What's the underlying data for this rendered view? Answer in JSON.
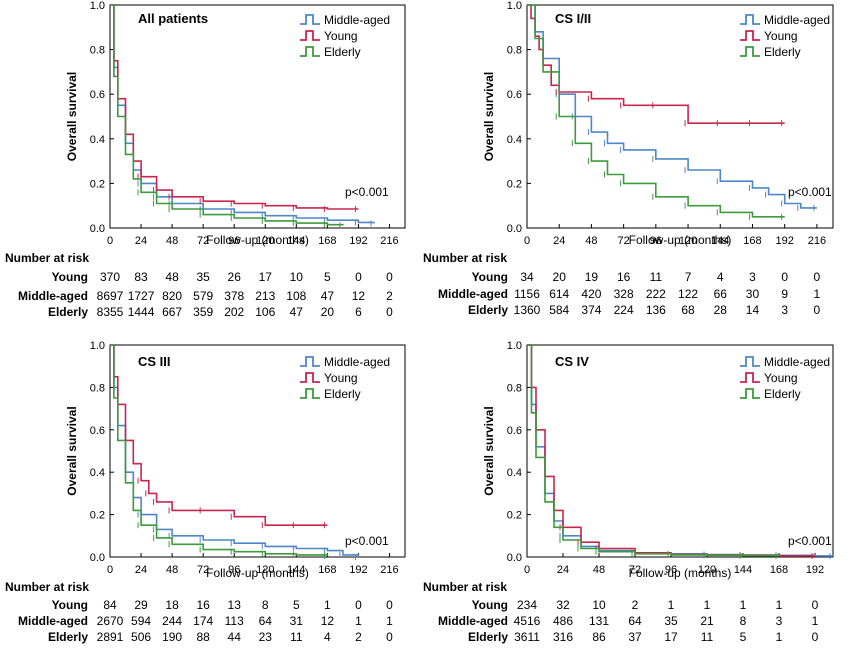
{
  "chart_data": [
    {
      "type": "line",
      "title": "All patients",
      "xlabel": "Follow-up (months)",
      "ylabel": "Overall survival",
      "xlim": [
        0,
        228
      ],
      "ylim": [
        0,
        1.0
      ],
      "xticks": [
        0,
        24,
        48,
        72,
        96,
        120,
        144,
        168,
        192,
        216
      ],
      "yticks": [
        0.0,
        0.2,
        0.4,
        0.6,
        0.8,
        1.0
      ],
      "pvalue": "p<0.001",
      "legend_position": "top-right",
      "series": [
        {
          "name": "Middle-aged",
          "color": "#4f86c6",
          "x": [
            0,
            3,
            6,
            12,
            18,
            24,
            36,
            48,
            72,
            96,
            120,
            144,
            168,
            192,
            204
          ],
          "y": [
            1.0,
            0.72,
            0.55,
            0.38,
            0.26,
            0.2,
            0.14,
            0.11,
            0.085,
            0.07,
            0.055,
            0.045,
            0.035,
            0.025,
            0.02
          ]
        },
        {
          "name": "Young",
          "color": "#c8264f",
          "x": [
            0,
            3,
            6,
            12,
            18,
            24,
            36,
            48,
            72,
            96,
            120,
            144,
            168,
            192
          ],
          "y": [
            1.0,
            0.75,
            0.58,
            0.42,
            0.3,
            0.23,
            0.17,
            0.14,
            0.12,
            0.11,
            0.1,
            0.09,
            0.085,
            0.085
          ]
        },
        {
          "name": "Elderly",
          "color": "#3d9a3d",
          "x": [
            0,
            3,
            6,
            12,
            18,
            24,
            36,
            48,
            72,
            96,
            120,
            144,
            168,
            180
          ],
          "y": [
            1.0,
            0.68,
            0.5,
            0.33,
            0.22,
            0.16,
            0.11,
            0.085,
            0.06,
            0.045,
            0.032,
            0.022,
            0.015,
            0.012
          ]
        }
      ],
      "risk_table": {
        "header": "Number at risk",
        "rows": [
          {
            "label": "Young",
            "values": [
              "370",
              "83",
              "48",
              "35",
              "26",
              "17",
              "10",
              "5",
              "0",
              "0"
            ]
          },
          {
            "label": "Middle-aged",
            "values": [
              "8697",
              "1727",
              "820",
              "579",
              "378",
              "213",
              "108",
              "47",
              "12",
              "2"
            ]
          },
          {
            "label": "Elderly",
            "values": [
              "8355",
              "1444",
              "667",
              "359",
              "202",
              "106",
              "47",
              "20",
              "6",
              "0"
            ]
          }
        ]
      }
    },
    {
      "type": "line",
      "title": "CS I/II",
      "xlabel": "Follow-up (months)",
      "ylabel": "Overall survival",
      "xlim": [
        0,
        228
      ],
      "ylim": [
        0,
        1.0
      ],
      "xticks": [
        0,
        24,
        48,
        72,
        96,
        120,
        144,
        168,
        192,
        216
      ],
      "yticks": [
        0.0,
        0.2,
        0.4,
        0.6,
        0.8,
        1.0
      ],
      "pvalue": "p<0.001",
      "legend_position": "top-right",
      "series": [
        {
          "name": "Middle-aged",
          "color": "#4f86c6",
          "x": [
            0,
            6,
            12,
            24,
            36,
            48,
            60,
            72,
            96,
            120,
            144,
            168,
            180,
            192,
            204,
            216
          ],
          "y": [
            1.0,
            0.88,
            0.76,
            0.6,
            0.5,
            0.43,
            0.38,
            0.35,
            0.31,
            0.26,
            0.21,
            0.18,
            0.15,
            0.11,
            0.09,
            0.09
          ]
        },
        {
          "name": "Young",
          "color": "#c8264f",
          "x": [
            0,
            3,
            6,
            9,
            12,
            18,
            24,
            48,
            72,
            96,
            120,
            144,
            168,
            192
          ],
          "y": [
            1.0,
            0.94,
            0.86,
            0.8,
            0.73,
            0.64,
            0.61,
            0.58,
            0.55,
            0.55,
            0.47,
            0.47,
            0.47,
            0.47
          ]
        },
        {
          "name": "Elderly",
          "color": "#3d9a3d",
          "x": [
            0,
            6,
            12,
            24,
            36,
            48,
            60,
            72,
            96,
            120,
            144,
            168,
            192
          ],
          "y": [
            1.0,
            0.85,
            0.7,
            0.5,
            0.38,
            0.3,
            0.24,
            0.2,
            0.14,
            0.1,
            0.07,
            0.05,
            0.05
          ]
        }
      ],
      "risk_table": {
        "header": "Number at risk",
        "rows": [
          {
            "label": "Young",
            "values": [
              "34",
              "20",
              "19",
              "16",
              "11",
              "7",
              "4",
              "3",
              "0",
              "0"
            ]
          },
          {
            "label": "Middle-aged",
            "values": [
              "1156",
              "614",
              "420",
              "328",
              "222",
              "122",
              "66",
              "30",
              "9",
              "1"
            ]
          },
          {
            "label": "Elderly",
            "values": [
              "1360",
              "584",
              "374",
              "224",
              "136",
              "68",
              "28",
              "14",
              "3",
              "0"
            ]
          }
        ]
      }
    },
    {
      "type": "line",
      "title": "CS III",
      "xlabel": "Follow-up (months)",
      "ylabel": "Overall survival",
      "xlim": [
        0,
        228
      ],
      "ylim": [
        0,
        1.0
      ],
      "xticks": [
        0,
        24,
        48,
        72,
        96,
        120,
        144,
        168,
        192,
        216
      ],
      "yticks": [
        0.0,
        0.2,
        0.4,
        0.6,
        0.8,
        1.0
      ],
      "pvalue": "p<0.001",
      "legend_position": "top-right",
      "series": [
        {
          "name": "Middle-aged",
          "color": "#4f86c6",
          "x": [
            0,
            3,
            6,
            12,
            18,
            24,
            36,
            48,
            72,
            96,
            120,
            144,
            168,
            180,
            192
          ],
          "y": [
            1.0,
            0.8,
            0.62,
            0.4,
            0.28,
            0.2,
            0.13,
            0.1,
            0.08,
            0.065,
            0.05,
            0.04,
            0.03,
            0.01,
            0.0
          ]
        },
        {
          "name": "Young",
          "color": "#c8264f",
          "x": [
            0,
            3,
            6,
            12,
            18,
            24,
            30,
            36,
            48,
            72,
            96,
            120,
            144,
            168
          ],
          "y": [
            1.0,
            0.85,
            0.72,
            0.55,
            0.44,
            0.36,
            0.3,
            0.26,
            0.22,
            0.22,
            0.19,
            0.15,
            0.15,
            0.15
          ]
        },
        {
          "name": "Elderly",
          "color": "#3d9a3d",
          "x": [
            0,
            3,
            6,
            12,
            18,
            24,
            36,
            48,
            72,
            96,
            120,
            144,
            168
          ],
          "y": [
            1.0,
            0.75,
            0.55,
            0.35,
            0.22,
            0.15,
            0.09,
            0.06,
            0.035,
            0.025,
            0.015,
            0.01,
            0.005
          ]
        }
      ],
      "risk_table": {
        "header": "Number at risk",
        "rows": [
          {
            "label": "Young",
            "values": [
              "84",
              "29",
              "18",
              "16",
              "13",
              "8",
              "5",
              "1",
              "0",
              "0"
            ]
          },
          {
            "label": "Middle-aged",
            "values": [
              "2670",
              "594",
              "244",
              "174",
              "113",
              "64",
              "31",
              "12",
              "1",
              "1"
            ]
          },
          {
            "label": "Elderly",
            "values": [
              "2891",
              "506",
              "190",
              "88",
              "44",
              "23",
              "11",
              "4",
              "2",
              "0"
            ]
          }
        ]
      }
    },
    {
      "type": "line",
      "title": "CS IV",
      "xlabel": "Follow-up (months)",
      "ylabel": "Overall survival",
      "xlim": [
        0,
        204
      ],
      "ylim": [
        0,
        1.0
      ],
      "xticks": [
        0,
        24,
        48,
        72,
        96,
        120,
        144,
        168,
        192
      ],
      "yticks": [
        0.0,
        0.2,
        0.4,
        0.6,
        0.8,
        1.0
      ],
      "pvalue": "p<0.001",
      "legend_position": "top-right",
      "series": [
        {
          "name": "Middle-aged",
          "color": "#4f86c6",
          "x": [
            0,
            3,
            6,
            12,
            18,
            24,
            36,
            48,
            72,
            96,
            120,
            144,
            168,
            192,
            204
          ],
          "y": [
            1.0,
            0.72,
            0.52,
            0.3,
            0.17,
            0.1,
            0.05,
            0.03,
            0.02,
            0.015,
            0.012,
            0.01,
            0.008,
            0.005,
            0.004
          ]
        },
        {
          "name": "Young",
          "color": "#c8264f",
          "x": [
            0,
            3,
            6,
            12,
            18,
            24,
            36,
            48,
            72,
            96,
            120,
            144,
            168,
            192
          ],
          "y": [
            1.0,
            0.8,
            0.6,
            0.38,
            0.22,
            0.14,
            0.07,
            0.04,
            0.02,
            0.012,
            0.01,
            0.008,
            0.005,
            0.005
          ]
        },
        {
          "name": "Elderly",
          "color": "#3d9a3d",
          "x": [
            0,
            3,
            6,
            12,
            18,
            24,
            36,
            48,
            72,
            96,
            120,
            144,
            168
          ],
          "y": [
            1.0,
            0.68,
            0.47,
            0.26,
            0.14,
            0.08,
            0.04,
            0.025,
            0.015,
            0.01,
            0.008,
            0.006,
            0.004
          ]
        }
      ],
      "risk_table": {
        "header": "Number at risk",
        "rows": [
          {
            "label": "Young",
            "values": [
              "234",
              "32",
              "10",
              "2",
              "1",
              "1",
              "1",
              "1",
              "0"
            ]
          },
          {
            "label": "Middle-aged",
            "values": [
              "4516",
              "486",
              "131",
              "64",
              "35",
              "21",
              "8",
              "3",
              "1"
            ]
          },
          {
            "label": "Elderly",
            "values": [
              "3611",
              "316",
              "86",
              "37",
              "17",
              "11",
              "5",
              "1",
              "0"
            ]
          }
        ]
      }
    }
  ]
}
